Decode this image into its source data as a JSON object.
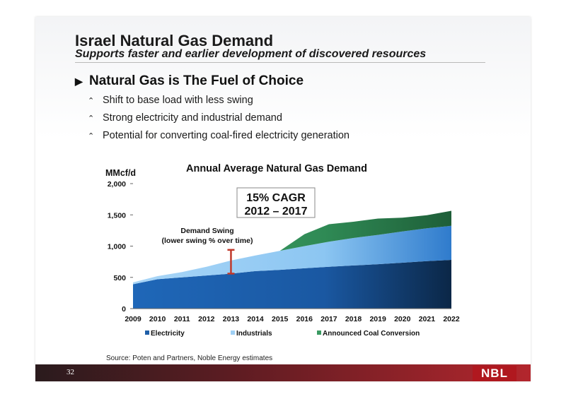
{
  "slide": {
    "title": "Israel Natural Gas Demand",
    "subtitle": "Supports faster and earlier development of discovered resources",
    "main_bullet": "Natural Gas is The Fuel of Choice",
    "sub_bullets": [
      "Shift to base load with less swing",
      "Strong electricity and industrial demand",
      "Potential for converting coal-fired electricity generation"
    ],
    "source": "Source: Poten and Partners, Noble Energy estimates",
    "page_number": "32",
    "logo_text": "NBL"
  },
  "chart_data": {
    "type": "area",
    "stacked": true,
    "title": "Annual Average Natural Gas Demand",
    "ylabel": "MMcf/d",
    "xlabel": "",
    "x": [
      "2009",
      "2010",
      "2011",
      "2012",
      "2013",
      "2014",
      "2015",
      "2016",
      "2017",
      "2018",
      "2019",
      "2020",
      "2021",
      "2022"
    ],
    "ylim": [
      0,
      2000
    ],
    "yticks": [
      0,
      500,
      1000,
      1500,
      2000
    ],
    "ytick_labels": [
      "0",
      "500",
      "1,000",
      "1,500",
      "2,000"
    ],
    "grid": false,
    "legend": "bottom",
    "series": [
      {
        "name": "Electricity",
        "color": "#1f5fa8",
        "values": [
          390,
          470,
          500,
          530,
          560,
          600,
          620,
          645,
          670,
          690,
          710,
          735,
          760,
          780
        ]
      },
      {
        "name": "Industrials",
        "color": "#9fd0f5",
        "values": [
          30,
          50,
          85,
          140,
          210,
          250,
          305,
          355,
          400,
          440,
          470,
          500,
          525,
          545
        ]
      },
      {
        "name": "Announced Coal Conversion",
        "color": "#3a9a62",
        "values": [
          0,
          0,
          0,
          0,
          0,
          0,
          0,
          190,
          280,
          260,
          260,
          220,
          210,
          240
        ]
      }
    ],
    "annotations": {
      "cagr_line1": "15% CAGR",
      "cagr_line2": "2012 – 2017",
      "swing_line1": "Demand Swing",
      "swing_line2": "(lower swing % over time)",
      "swing_range": {
        "x": "2013",
        "low": 560,
        "high": 940
      },
      "swing_color": "#c0392b"
    }
  }
}
